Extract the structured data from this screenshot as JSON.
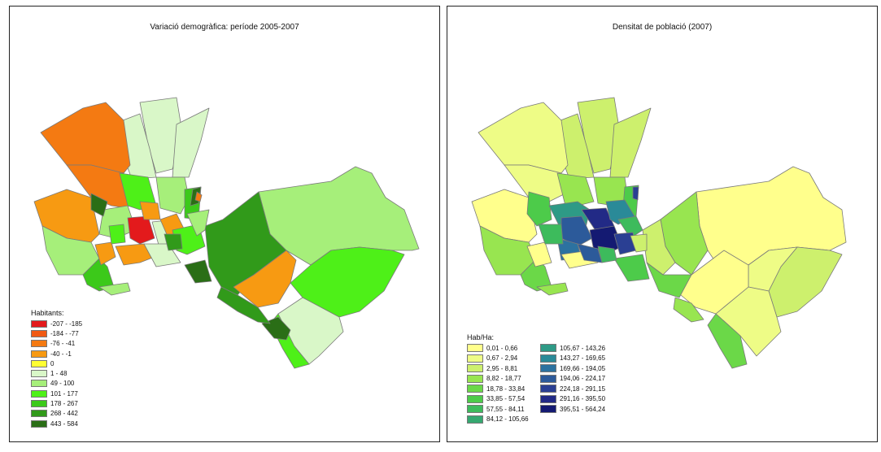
{
  "left_panel": {
    "title": "Variació demogràfica: període 2005-2007",
    "legend": {
      "title": "Habitants:",
      "items": [
        {
          "label": "-207 - -185",
          "color": "#e31a1c"
        },
        {
          "label": "-184 - -77",
          "color": "#f05a14"
        },
        {
          "label": "-76 - -41",
          "color": "#f47a12"
        },
        {
          "label": "-40 - -1",
          "color": "#f79a12"
        },
        {
          "label": "0",
          "color": "#ffff33"
        },
        {
          "label": "1 - 48",
          "color": "#d9f7c8"
        },
        {
          "label": "49 - 100",
          "color": "#a6ef7a"
        },
        {
          "label": "101 - 177",
          "color": "#4ef018"
        },
        {
          "label": "178 - 267",
          "color": "#3cc91a"
        },
        {
          "label": "268 - 442",
          "color": "#319a1a"
        },
        {
          "label": "443 - 584",
          "color": "#2a6e16"
        }
      ]
    }
  },
  "right_panel": {
    "title": "Densitat de població (2007)",
    "legend": {
      "title": "Hab/Ha:",
      "col1": [
        {
          "label": "0,01 - 0,66",
          "color": "#ffff8c"
        },
        {
          "label": "0,67 - 2,94",
          "color": "#eefc86"
        },
        {
          "label": "2,95 - 8,81",
          "color": "#cdf06d"
        },
        {
          "label": "8,82 - 18,77",
          "color": "#98e550"
        },
        {
          "label": "18,78 - 33,84",
          "color": "#6bd848"
        },
        {
          "label": "33,85 - 57,54",
          "color": "#4dcb4a"
        },
        {
          "label": "57,55 - 84,11",
          "color": "#3dbb5c"
        },
        {
          "label": "84,12 - 105,66",
          "color": "#35a870"
        }
      ],
      "col2": [
        {
          "label": "105,67 - 143,26",
          "color": "#2e9a86"
        },
        {
          "label": "143,27 - 169,65",
          "color": "#2a8a98"
        },
        {
          "label": "169,66 - 194,05",
          "color": "#2c72a0"
        },
        {
          "label": "194,06 - 224,17",
          "color": "#2c5a9a"
        },
        {
          "label": "224,18 - 291,15",
          "color": "#2a3f93"
        },
        {
          "label": "291,16 - 395,50",
          "color": "#222a86"
        },
        {
          "label": "395,51 - 564,24",
          "color": "#141a72"
        }
      ]
    }
  }
}
